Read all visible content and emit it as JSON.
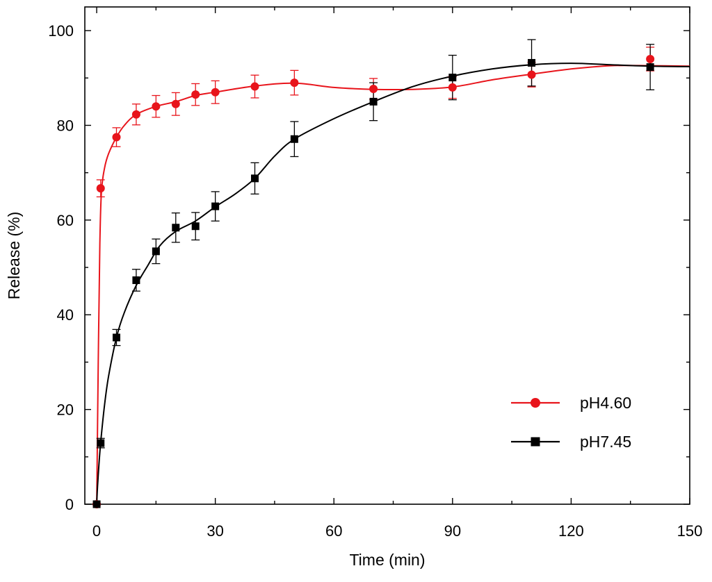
{
  "chart_data": {
    "type": "line",
    "title": "",
    "xlabel": "Time (min)",
    "ylabel": "Release (%)",
    "xlim": [
      -3,
      150
    ],
    "ylim": [
      0,
      105
    ],
    "xticks": [
      0,
      30,
      60,
      90,
      120,
      150
    ],
    "yticks": [
      0,
      20,
      40,
      60,
      80,
      100
    ],
    "grid": false,
    "legend_position": "bottom-right",
    "series": [
      {
        "name": "pH4.60",
        "color": "#e8141b",
        "marker": "circle",
        "x": [
          0,
          1,
          5,
          10,
          15,
          20,
          25,
          30,
          40,
          50,
          70,
          90,
          110,
          140
        ],
        "y": [
          0,
          66.7,
          77.5,
          82.3,
          84.0,
          84.5,
          86.5,
          87.0,
          88.2,
          89.0,
          87.7,
          88.0,
          90.7,
          94.0
        ],
        "err": [
          0,
          1.8,
          2.0,
          2.2,
          2.3,
          2.4,
          2.3,
          2.4,
          2.4,
          2.6,
          2.2,
          2.3,
          2.6,
          2.5
        ],
        "fit_x": [
          0,
          0.4,
          0.8,
          1.2,
          2,
          3,
          5,
          7,
          10,
          15,
          20,
          25,
          30,
          40,
          50,
          60,
          70,
          80,
          90,
          100,
          110,
          120,
          130,
          140,
          150
        ],
        "fit_y": [
          0,
          30,
          55,
          66,
          71,
          74,
          77.5,
          80,
          82.3,
          84.0,
          85.0,
          86.3,
          87.0,
          88.3,
          88.9,
          88.0,
          87.6,
          87.6,
          88.1,
          89.6,
          90.8,
          91.9,
          92.6,
          92.6,
          92.5
        ]
      },
      {
        "name": "pH7.45",
        "color": "#000000",
        "marker": "square",
        "x": [
          0,
          1,
          5,
          10,
          15,
          20,
          25,
          30,
          40,
          50,
          70,
          90,
          110,
          140
        ],
        "y": [
          0,
          12.9,
          35.2,
          47.3,
          53.4,
          58.4,
          58.7,
          62.9,
          68.8,
          77.1,
          85.0,
          90.1,
          93.2,
          92.3
        ],
        "err": [
          0,
          1.0,
          1.7,
          2.3,
          2.6,
          3.1,
          2.9,
          3.1,
          3.3,
          3.7,
          4.0,
          4.7,
          4.9,
          4.8
        ],
        "fit_x": [
          0,
          0.3,
          1,
          2,
          3,
          5,
          7,
          10,
          13,
          16,
          20,
          25,
          30,
          35,
          40,
          45,
          50,
          60,
          70,
          80,
          90,
          100,
          110,
          120,
          130,
          140,
          150
        ],
        "fit_y": [
          0,
          5,
          12.9,
          21,
          27,
          35.2,
          40.5,
          46.2,
          50.5,
          54.6,
          57.6,
          59.8,
          62.8,
          65.5,
          68.8,
          73.5,
          77.1,
          81.4,
          85.0,
          88.2,
          90.4,
          91.9,
          92.8,
          93.1,
          92.8,
          92.5,
          92.4
        ]
      }
    ]
  }
}
